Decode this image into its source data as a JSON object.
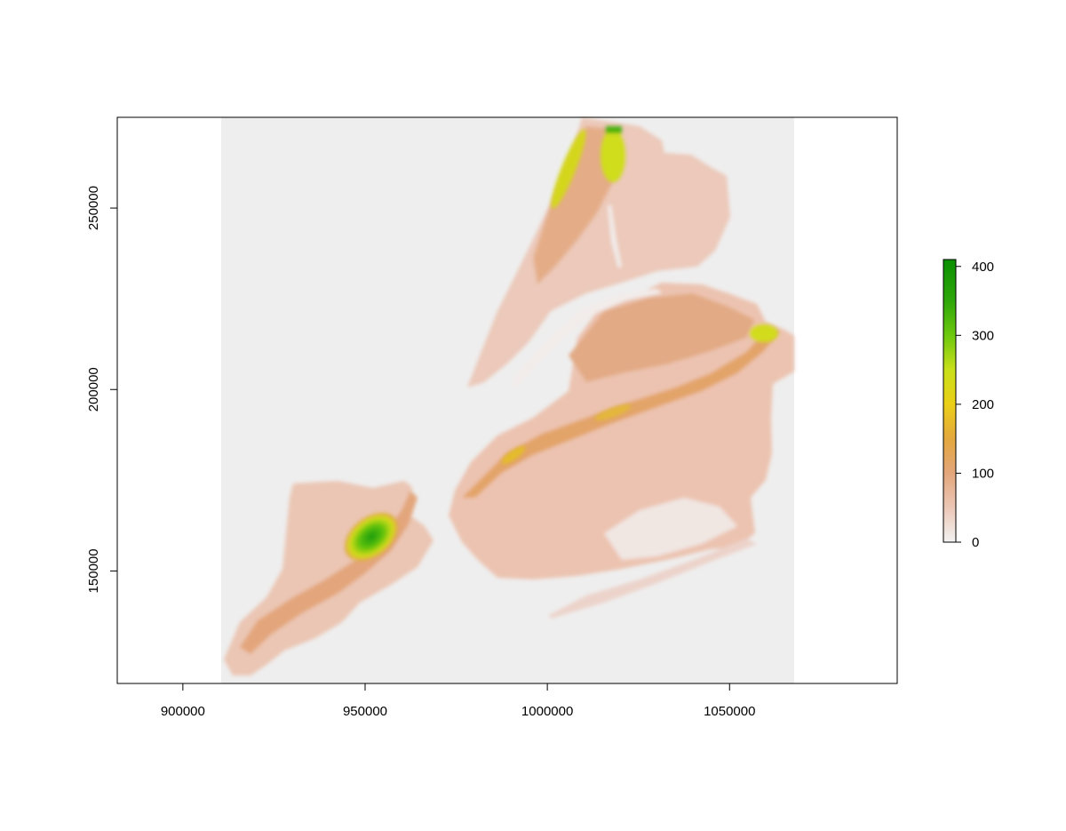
{
  "chart_data": {
    "type": "heatmap",
    "title": "",
    "xlabel": "",
    "ylabel": "",
    "xlim": [
      882000,
      1096000
    ],
    "ylim": [
      119000,
      275000
    ],
    "raster_extent": {
      "x": [
        910000,
        1068000
      ],
      "y": [
        119000,
        275000
      ]
    },
    "background_color": "#eeeeee",
    "x_ticks": [
      {
        "value": 900000,
        "label": "900000"
      },
      {
        "value": 950000,
        "label": "950000"
      },
      {
        "value": 1000000,
        "label": "1000000"
      },
      {
        "value": 1050000,
        "label": "1050000"
      }
    ],
    "y_ticks": [
      {
        "value": 150000,
        "label": "150000"
      },
      {
        "value": 200000,
        "label": "200000"
      },
      {
        "value": 250000,
        "label": "250000"
      }
    ],
    "legend": {
      "placement": "right",
      "min": 0,
      "max": 410,
      "ticks": [
        {
          "value": 0,
          "label": "0"
        },
        {
          "value": 100,
          "label": "100"
        },
        {
          "value": 200,
          "label": "200"
        },
        {
          "value": 300,
          "label": "300"
        },
        {
          "value": 400,
          "label": "400"
        }
      ],
      "color_stops": [
        {
          "value": 0,
          "color": "#f2f2f2"
        },
        {
          "value": 50,
          "color": "#ecc7b6"
        },
        {
          "value": 100,
          "color": "#e3a67b"
        },
        {
          "value": 150,
          "color": "#e3a83e"
        },
        {
          "value": 200,
          "color": "#ebcf17"
        },
        {
          "value": 250,
          "color": "#c9e019"
        },
        {
          "value": 300,
          "color": "#6dc80e"
        },
        {
          "value": 350,
          "color": "#2ea70a"
        },
        {
          "value": 410,
          "color": "#0a8f00"
        }
      ]
    }
  }
}
